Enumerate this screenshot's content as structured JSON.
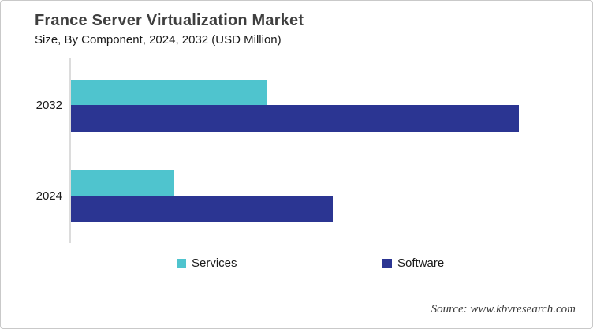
{
  "header": {
    "title": "France Server Virtualization Market",
    "subtitle": "Size, By Component, 2024, 2032 (USD Million)"
  },
  "meta": {
    "source": "Source: www.kbvresearch.com"
  },
  "colors": {
    "services": "#4FC4CE",
    "software": "#2B3592",
    "axis_line": "#DCDCDC",
    "title_text": "#3F3F3F",
    "body_text": "#1A1A1A"
  },
  "chart_data": {
    "type": "bar",
    "orientation": "horizontal",
    "title": "France Server Virtualization Market",
    "subtitle": "Size, By Component, 2024, 2032 (USD Million)",
    "value_unit": "USD Million",
    "categories": [
      "2032",
      "2024"
    ],
    "series": [
      {
        "name": "Services",
        "color": "#4FC4CE",
        "values": [
          249,
          131
        ]
      },
      {
        "name": "Software",
        "color": "#2B3592",
        "values": [
          568,
          332
        ]
      }
    ],
    "value_axis": {
      "label": "USD Million",
      "tick_labels_visible": false,
      "estimated_range": [
        0,
        600
      ]
    },
    "grid": false,
    "legend_position": "bottom",
    "note": "No numeric axis labels shown; values are relative lengths estimated from bar pixel widths."
  }
}
